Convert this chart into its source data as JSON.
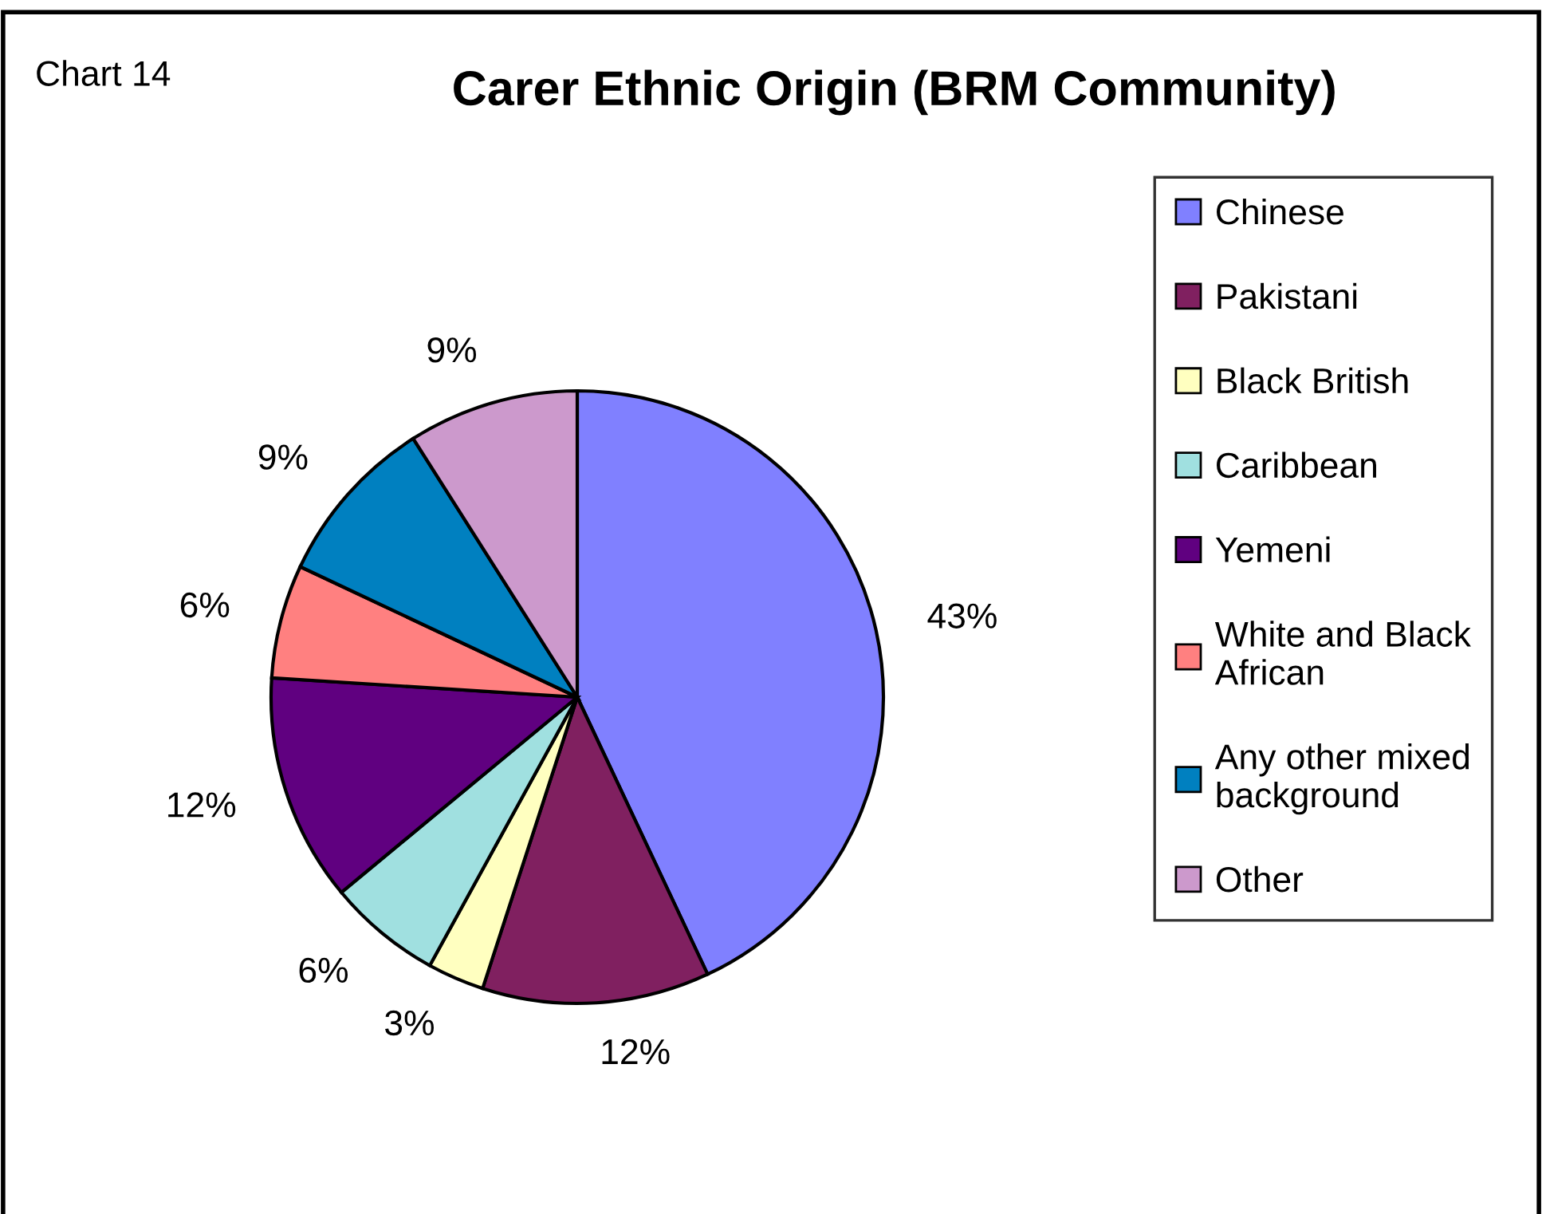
{
  "chart_data": {
    "type": "pie",
    "title": "Carer Ethnic Origin (BRM Community)",
    "annotations": [
      "Chart 14"
    ],
    "categories": [
      "Chinese",
      "Pakistani",
      "Black British",
      "Caribbean",
      "Yemeni",
      "White and Black African",
      "Any other mixed background",
      "Other"
    ],
    "values": [
      43,
      12,
      3,
      6,
      12,
      6,
      9,
      9
    ],
    "colors": [
      "#8080ff",
      "#802060",
      "#ffffc0",
      "#a0e0e0",
      "#600080",
      "#ff8080",
      "#0080c0",
      "#cc99cc"
    ],
    "value_labels": [
      "43%",
      "12%",
      "3%",
      "6%",
      "12%",
      "6%",
      "9%",
      "9%"
    ],
    "legend": "right"
  }
}
